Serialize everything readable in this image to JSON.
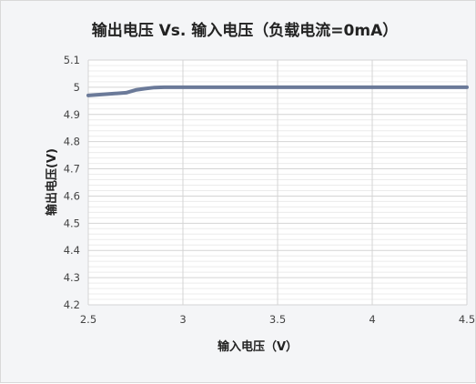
{
  "chart_data": {
    "type": "line",
    "title": "输出电压 Vs. 输入电压（负载电流=0mA）",
    "xlabel": "输入电压（V）",
    "ylabel": "输出电压(V)",
    "xlim": [
      2.5,
      4.5
    ],
    "ylim": [
      4.2,
      5.1
    ],
    "x_ticks": [
      "2.5",
      "3",
      "3.5",
      "4",
      "4.5"
    ],
    "y_ticks": [
      "4.2",
      "4.3",
      "4.4",
      "4.5",
      "4.6",
      "4.7",
      "4.8",
      "4.9",
      "5",
      "5.1"
    ],
    "grid": true,
    "legend": "none",
    "series": [
      {
        "color": "#6b7a99",
        "x": [
          2.5,
          2.6,
          2.7,
          2.75,
          2.8,
          2.85,
          2.9,
          3.0,
          3.5,
          4.0,
          4.5
        ],
        "y": [
          4.97,
          4.975,
          4.98,
          4.99,
          4.995,
          4.999,
          5.0,
          5.0,
          5.0,
          5.0,
          5.0
        ]
      }
    ]
  }
}
